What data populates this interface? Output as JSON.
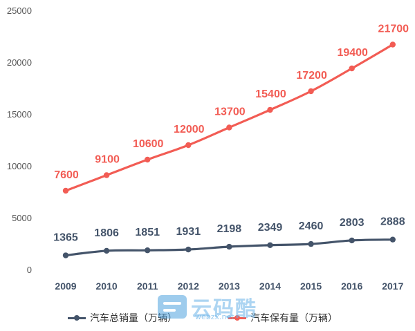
{
  "chart_data": {
    "type": "line",
    "categories": [
      "2009",
      "2010",
      "2011",
      "2012",
      "2013",
      "2014",
      "2015",
      "2016",
      "2017"
    ],
    "series": [
      {
        "name": "汽车总销量（万辆）",
        "color": "#44546A",
        "values": [
          1365,
          1806,
          1851,
          1931,
          2198,
          2349,
          2460,
          2803,
          2888
        ]
      },
      {
        "name": "汽车保有量（万辆）",
        "color": "#F25C54",
        "values": [
          7600,
          9100,
          10600,
          12000,
          13700,
          15400,
          17200,
          19400,
          21700
        ]
      }
    ],
    "yticks": [
      "0",
      "5000",
      "10000",
      "15000",
      "20000",
      "25000"
    ],
    "ylim": [
      0,
      25000
    ],
    "grid": false,
    "legend_position": "bottom"
  },
  "watermark": {
    "text": "云码酷",
    "url": "webzx.net"
  }
}
